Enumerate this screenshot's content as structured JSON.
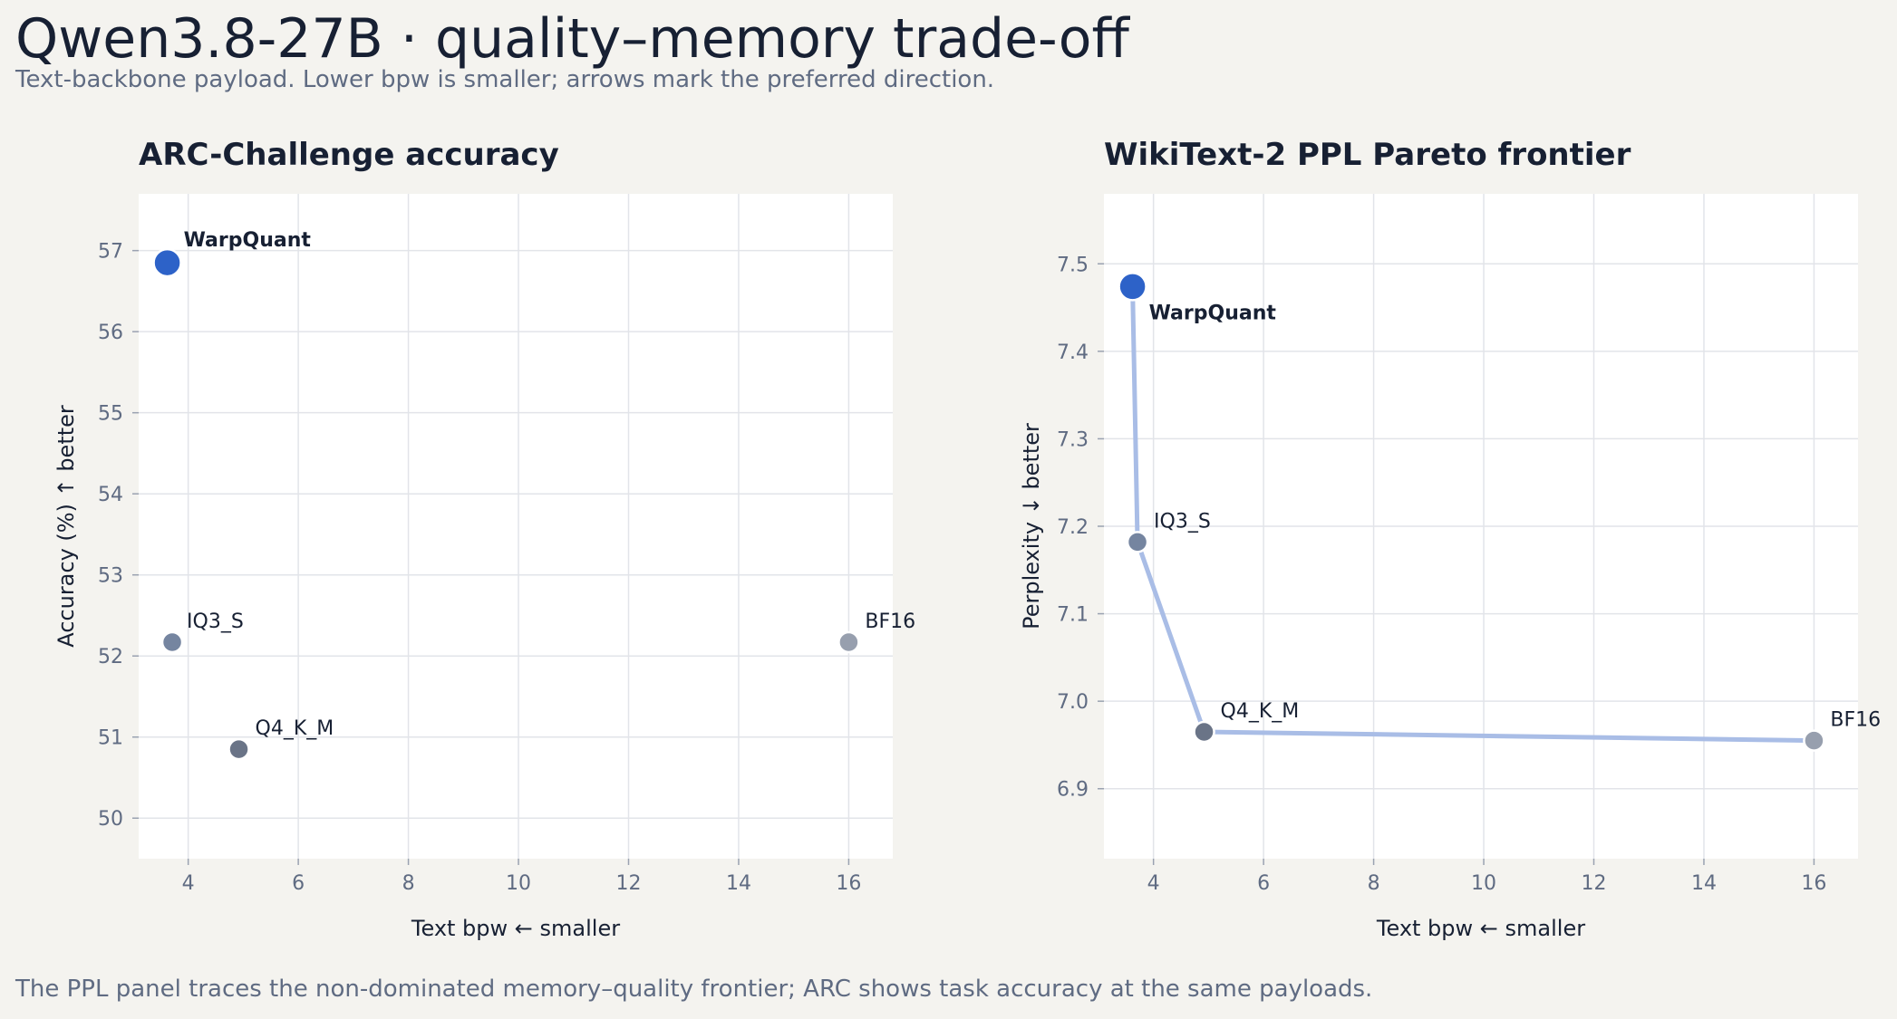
{
  "page": {
    "title": "Qwen3.8-27B · quality–memory trade-off",
    "subtitle": "Text-backbone payload. Lower bpw is smaller; arrows mark the preferred direction.",
    "footer": "The PPL panel traces the non-dominated memory–quality frontier; ARC shows task accuracy at the same payloads."
  },
  "colors": {
    "background": "#f4f3ef",
    "plot_background": "#ffffff",
    "grid": "#e2e4e9",
    "title_text": "#172033",
    "muted_text": "#5f6b82",
    "tick_text": "#5f6b82",
    "axis_label_text": "#172033",
    "frontier_line": "#a9bde6",
    "WarpQuant": "#2d62c8",
    "IQ3_S": "#7585a0",
    "Q4_K_M": "#6a7487",
    "BF16": "#979fae"
  },
  "chart_data": [
    {
      "type": "scatter",
      "title": "ARC-Challenge accuracy",
      "xlabel": "Text bpw  ← smaller",
      "ylabel": "Accuracy (%)  ↑ better",
      "xlim": [
        3.1,
        16.8
      ],
      "ylim": [
        49.5,
        57.7
      ],
      "xticks": [
        4,
        6,
        8,
        10,
        12,
        14,
        16
      ],
      "yticks": [
        50,
        51,
        52,
        53,
        54,
        55,
        56,
        57
      ],
      "grid": true,
      "frontier": false,
      "points": [
        {
          "name": "WarpQuant",
          "x": 3.62,
          "y": 56.85,
          "emphasis": true
        },
        {
          "name": "IQ3_S",
          "x": 3.71,
          "y": 52.17,
          "emphasis": false
        },
        {
          "name": "Q4_K_M",
          "x": 4.92,
          "y": 50.85,
          "emphasis": false
        },
        {
          "name": "BF16",
          "x": 16.0,
          "y": 52.17,
          "emphasis": false
        }
      ]
    },
    {
      "type": "scatter",
      "title": "WikiText-2 PPL Pareto frontier",
      "xlabel": "Text bpw  ← smaller",
      "ylabel": "Perplexity  ↓ better",
      "xlim": [
        3.1,
        16.8
      ],
      "ylim": [
        6.82,
        7.58
      ],
      "xticks": [
        4,
        6,
        8,
        10,
        12,
        14,
        16
      ],
      "yticks": [
        6.9,
        7.0,
        7.1,
        7.2,
        7.3,
        7.4,
        7.5
      ],
      "grid": true,
      "frontier": true,
      "points": [
        {
          "name": "WarpQuant",
          "x": 3.62,
          "y": 7.474,
          "emphasis": true
        },
        {
          "name": "IQ3_S",
          "x": 3.71,
          "y": 7.182,
          "emphasis": false
        },
        {
          "name": "Q4_K_M",
          "x": 4.92,
          "y": 6.965,
          "emphasis": false
        },
        {
          "name": "BF16",
          "x": 16.0,
          "y": 6.955,
          "emphasis": false
        }
      ]
    }
  ]
}
